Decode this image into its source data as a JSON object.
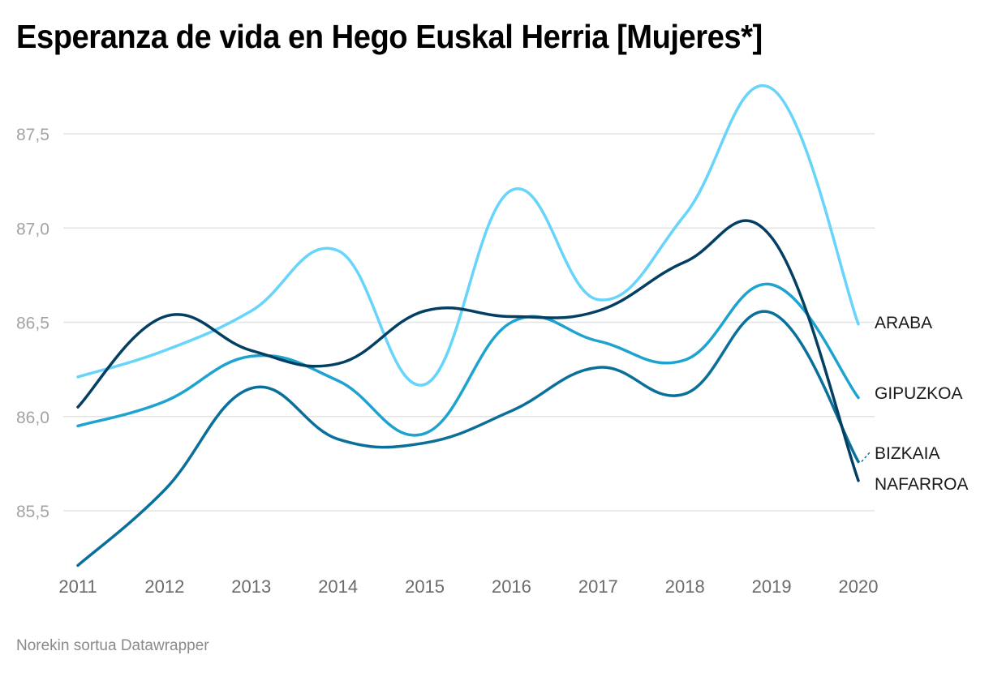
{
  "title": "Esperanza de vida en Hego Euskal Herria [Mujeres*]",
  "footer": "Norekin sortua Datawrapper",
  "chart_data": {
    "type": "line",
    "title": "Esperanza de vida en Hego Euskal Herria [Mujeres*]",
    "xlabel": "",
    "ylabel": "",
    "x": [
      "2011",
      "2012",
      "2013",
      "2014",
      "2015",
      "2016",
      "2017",
      "2018",
      "2019",
      "2020"
    ],
    "ylim": [
      85.2,
      87.75
    ],
    "yticks": [
      85.5,
      86.0,
      86.5,
      87.0,
      87.5
    ],
    "ytick_labels": [
      "85,5",
      "86,0",
      "86,5",
      "87,0",
      "87,5"
    ],
    "grid": true,
    "legend": "direct labels at right end of lines",
    "series": [
      {
        "name": "ARABA",
        "color": "#66d4fb",
        "values": [
          86.21,
          86.35,
          86.56,
          86.88,
          86.17,
          87.2,
          86.62,
          87.07,
          87.74,
          86.49
        ]
      },
      {
        "name": "GIPUZKOA",
        "color": "#1ea3d1",
        "values": [
          85.95,
          86.08,
          86.32,
          86.19,
          85.91,
          86.5,
          86.4,
          86.3,
          86.7,
          86.1
        ]
      },
      {
        "name": "BIZKAIA",
        "color": "#0a6f9a",
        "values": [
          85.21,
          85.61,
          86.15,
          85.88,
          85.86,
          86.03,
          86.26,
          86.12,
          86.55,
          85.76
        ]
      },
      {
        "name": "NAFARROA",
        "color": "#033f63",
        "values": [
          86.05,
          86.53,
          86.35,
          86.28,
          86.56,
          86.53,
          86.56,
          86.82,
          86.95,
          85.66
        ]
      }
    ]
  }
}
